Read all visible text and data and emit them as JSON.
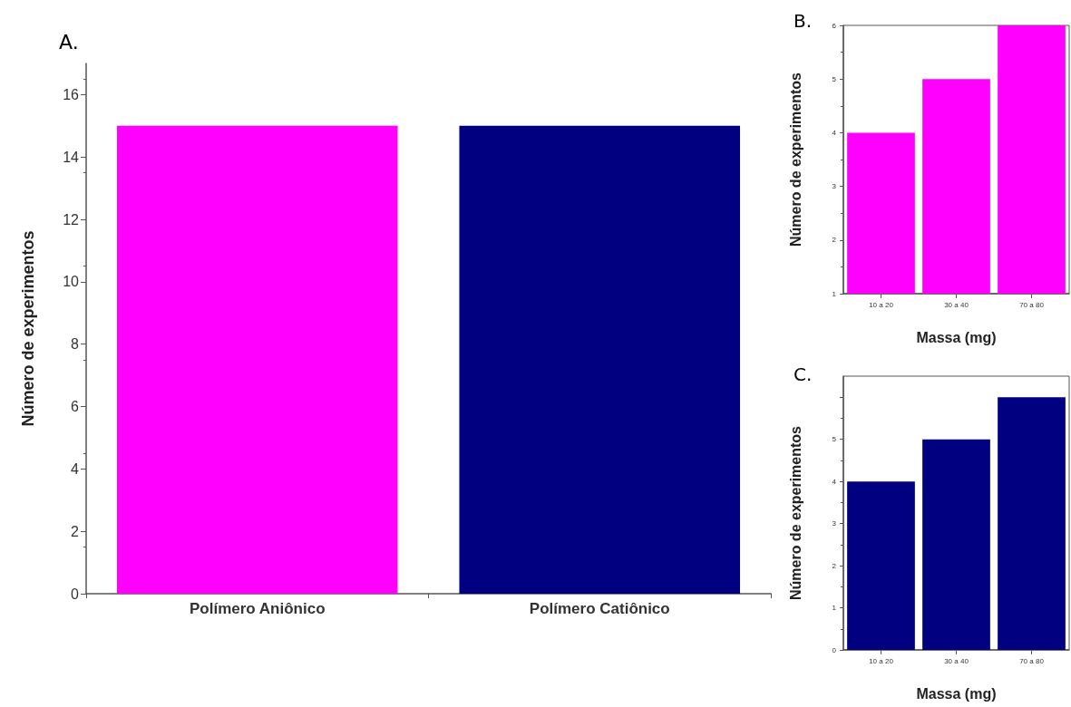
{
  "chart_data": [
    {
      "type": "bar",
      "title": "A.",
      "ylabel": "Número de experimentos",
      "categories": [
        "Polímero Aniônico",
        "Polímero Catiônico"
      ],
      "colors": [
        "#ff00ff",
        "#000080"
      ],
      "values": [
        15,
        15
      ],
      "ylim": [
        0,
        17
      ],
      "yticks": [
        0,
        2,
        4,
        6,
        8,
        10,
        12,
        14,
        16
      ],
      "grid": false
    },
    {
      "type": "bar",
      "title": "B.",
      "xlabel": "Massa (mg)",
      "ylabel": "Número de experimentos",
      "categories": [
        "10 a 20",
        "30 a 40",
        "70 a 80"
      ],
      "color": "#ff00ff",
      "values": [
        4,
        5,
        6
      ],
      "ylim": [
        1,
        6
      ],
      "yticks": [
        1,
        2,
        3,
        4,
        5,
        6
      ],
      "grid": false
    },
    {
      "type": "bar",
      "title": "C.",
      "xlabel": "Massa (mg)",
      "ylabel": "Número de experimentos",
      "categories": [
        "10 a 20",
        "30 a 40",
        "70 a 80"
      ],
      "color": "#000080",
      "values": [
        4,
        5,
        6
      ],
      "ylim": [
        0,
        6.5
      ],
      "yticks": [
        0,
        1,
        2,
        3,
        4,
        5,
        {
          "value": 6,
          "label": null
        }
      ],
      "grid": false
    }
  ]
}
